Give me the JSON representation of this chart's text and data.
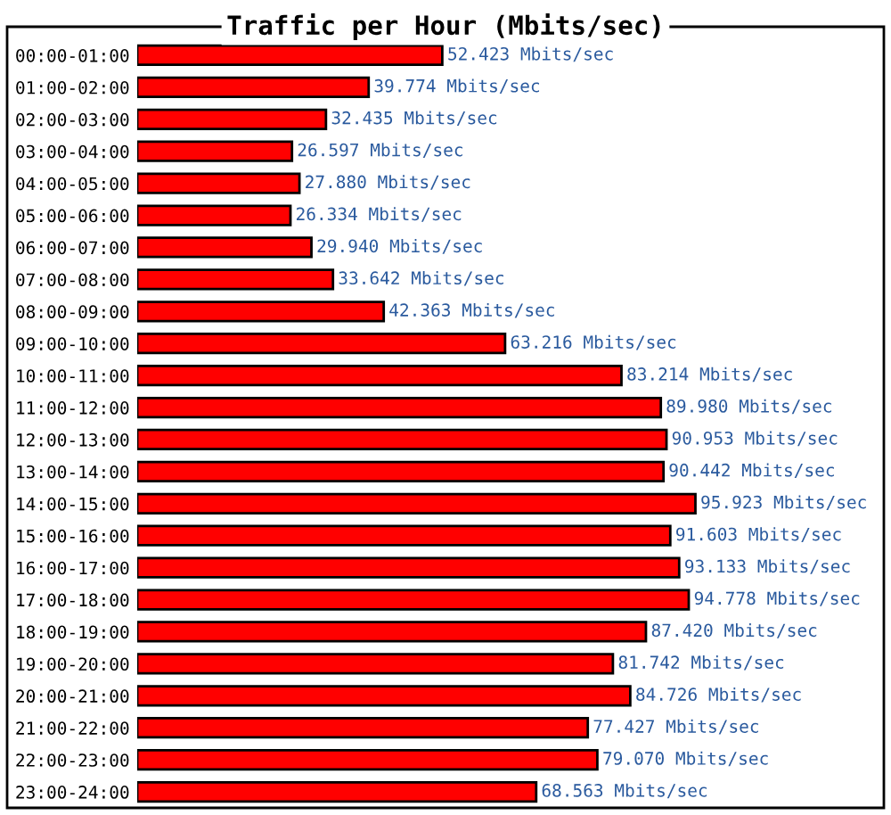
{
  "chart_data": {
    "type": "bar",
    "orientation": "horizontal",
    "title": "Traffic per Hour (Mbits/sec)",
    "categories": [
      "00:00-01:00",
      "01:00-02:00",
      "02:00-03:00",
      "03:00-04:00",
      "04:00-05:00",
      "05:00-06:00",
      "06:00-07:00",
      "07:00-08:00",
      "08:00-09:00",
      "09:00-10:00",
      "10:00-11:00",
      "11:00-12:00",
      "12:00-13:00",
      "13:00-14:00",
      "14:00-15:00",
      "15:00-16:00",
      "16:00-17:00",
      "17:00-18:00",
      "18:00-19:00",
      "19:00-20:00",
      "20:00-21:00",
      "21:00-22:00",
      "22:00-23:00",
      "23:00-24:00"
    ],
    "values": [
      52.423,
      39.774,
      32.435,
      26.597,
      27.88,
      26.334,
      29.94,
      33.642,
      42.363,
      63.216,
      83.214,
      89.98,
      90.953,
      90.442,
      95.923,
      91.603,
      93.133,
      94.778,
      87.42,
      81.742,
      84.726,
      77.427,
      79.07,
      68.563
    ],
    "value_labels": [
      "52.423 Mbits/sec",
      "39.774 Mbits/sec",
      "32.435 Mbits/sec",
      "26.597 Mbits/sec",
      "27.880 Mbits/sec",
      "26.334 Mbits/sec",
      "29.940 Mbits/sec",
      "33.642 Mbits/sec",
      "42.363 Mbits/sec",
      "63.216 Mbits/sec",
      "83.214 Mbits/sec",
      "89.980 Mbits/sec",
      "90.953 Mbits/sec",
      "90.442 Mbits/sec",
      "95.923 Mbits/sec",
      "91.603 Mbits/sec",
      "93.133 Mbits/sec",
      "94.778 Mbits/sec",
      "87.420 Mbits/sec",
      "81.742 Mbits/sec",
      "84.726 Mbits/sec",
      "77.427 Mbits/sec",
      "79.070 Mbits/sec",
      "68.563 Mbits/sec"
    ],
    "color": "#ff0000",
    "xlim": [
      0,
      128
    ],
    "tick_labels": "y",
    "grid": false,
    "legend": false
  }
}
